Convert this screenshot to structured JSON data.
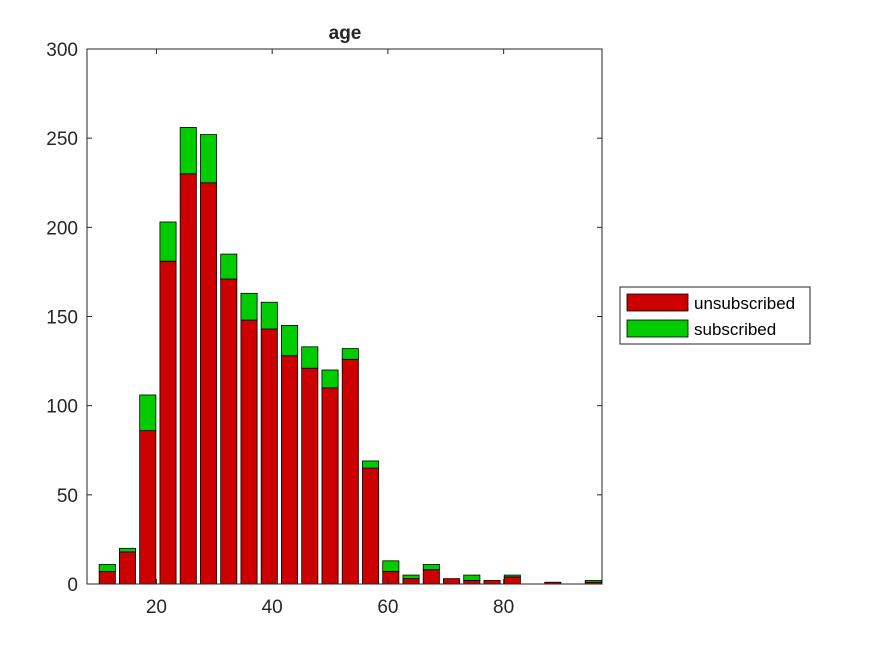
{
  "chart_data": {
    "type": "bar",
    "stacked": true,
    "title": "age",
    "xlabel": "",
    "ylabel": "",
    "xlim": [
      8,
      97
    ],
    "ylim": [
      0,
      300
    ],
    "xticks": [
      20,
      40,
      60,
      80
    ],
    "yticks": [
      0,
      50,
      100,
      150,
      200,
      250,
      300
    ],
    "grid": false,
    "legend_position": "outside right",
    "x": [
      11.5,
      15,
      18.5,
      22,
      25.5,
      29,
      32.5,
      36,
      39.5,
      43,
      46.5,
      50,
      53.5,
      57,
      60.5,
      64,
      67.5,
      71,
      74.5,
      78,
      81.5,
      85,
      88.5,
      92,
      95.5
    ],
    "series": [
      {
        "name": "unsubscribed",
        "color": "#cc0000",
        "values": [
          7,
          18,
          86,
          181,
          230,
          225,
          171,
          148,
          143,
          128,
          121,
          110,
          126,
          65,
          7,
          3,
          8,
          3,
          2,
          2,
          4,
          0,
          1,
          0,
          1
        ]
      },
      {
        "name": "subscribed",
        "color": "#00cc00",
        "values": [
          4,
          2,
          20,
          22,
          26,
          27,
          14,
          15,
          15,
          17,
          12,
          10,
          6,
          4,
          6,
          2,
          3,
          0,
          3,
          0,
          1,
          0,
          0,
          0,
          1
        ]
      }
    ]
  }
}
